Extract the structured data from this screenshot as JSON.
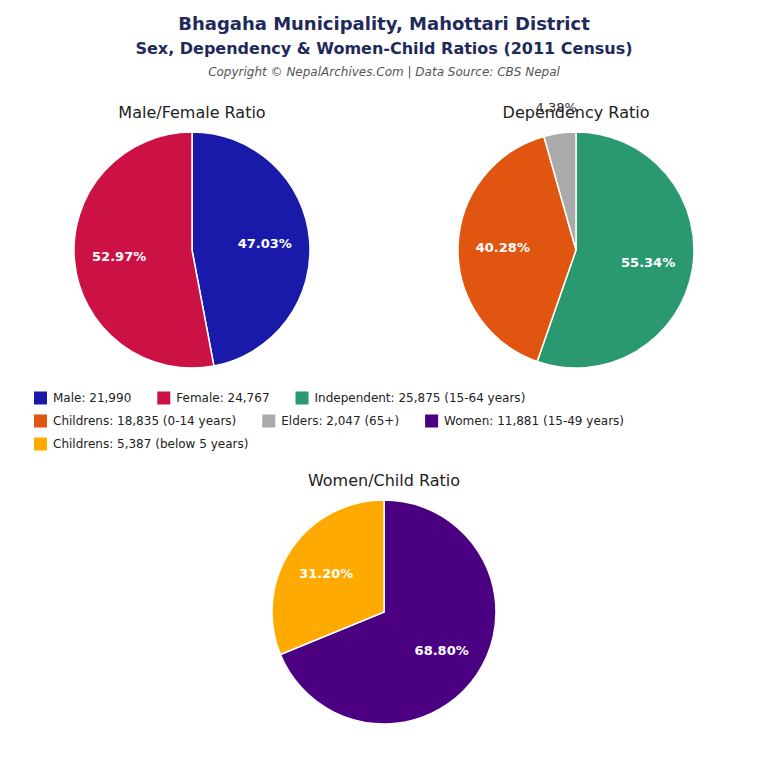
{
  "title": "Bhagaha Municipality, Mahottari District",
  "subtitle": "Sex, Dependency & Women-Child Ratios (2011 Census)",
  "annotations": [
    "Copyright © NepalArchives.Com | Data Source: CBS Nepal"
  ],
  "chart_data": [
    {
      "type": "pie",
      "title": "Male/Female Ratio",
      "categories": [
        "Male: 21,990",
        "Female: 24,767"
      ],
      "values": [
        47.03,
        52.97
      ],
      "value_labels": [
        "47.03%",
        "52.97%"
      ],
      "colors": [
        "#1a1aaa",
        "#cc1144"
      ],
      "data_labels": true,
      "legend": "bottom"
    },
    {
      "type": "pie",
      "title": "Dependency Ratio",
      "categories": [
        "Independent: 25,875 (15-64 years)",
        "Childrens: 18,835 (0-14 years)",
        "Elders: 2,047 (65+)"
      ],
      "values": [
        55.34,
        40.28,
        4.38
      ],
      "value_labels": [
        "55.34%",
        "40.28%",
        "4.38%"
      ],
      "colors": [
        "#2a9970",
        "#e05510",
        "#aaaaaa"
      ],
      "data_labels": true,
      "legend": "bottom"
    },
    {
      "type": "pie",
      "title": "Women/Child Ratio",
      "categories": [
        "Women: 11,881 (15-49 years)",
        "Childrens: 5,387 (below 5 years)"
      ],
      "values": [
        68.8,
        31.2
      ],
      "value_labels": [
        "68.80%",
        "31.20%"
      ],
      "colors": [
        "#4b0082",
        "#ffaa00"
      ],
      "data_labels": true,
      "legend": "bottom"
    }
  ]
}
